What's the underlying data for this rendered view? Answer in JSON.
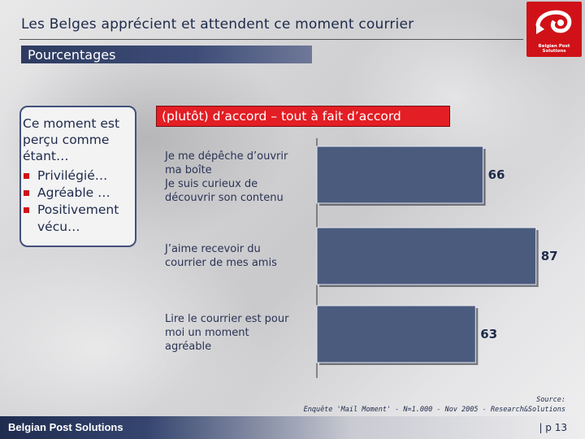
{
  "header": {
    "title": "Les Belges apprécient et attendent ce moment courrier",
    "subtitle": "Pourcentages"
  },
  "logo": {
    "text": "Belgian Post Solutions"
  },
  "left_panel": {
    "heading": "Ce moment est perçu comme étant…",
    "bullets": [
      "Privilégié…",
      "Agréable …",
      "Positivement vécu…"
    ]
  },
  "chart_data": {
    "type": "bar",
    "orientation": "horizontal",
    "title": "(plutôt) d’accord – tout à fait d’accord",
    "categories": [
      "Je me dépêche d’ouvrir ma boîte\nJe suis curieux de découvrir son contenu",
      "J’aime recevoir du courrier de mes amis",
      "Lire le courrier est pour moi un moment agréable"
    ],
    "category_lines": [
      [
        "Je me dépêche d’ouvrir",
        "ma boîte",
        "Je suis curieux de",
        "découvrir son contenu"
      ],
      [
        "J’aime recevoir du",
        "courrier de mes amis"
      ],
      [
        "Lire le courrier est pour",
        "moi un moment",
        "agréable"
      ]
    ],
    "values": [
      66,
      87,
      63
    ],
    "xlim": [
      0,
      100
    ],
    "bar_color": "#4a5b7e",
    "header_color": "#e31e24"
  },
  "source": {
    "label": "Source:",
    "text": "Enquête 'Mail Moment' - N=1.000 - Nov 2005 - Research&Solutions"
  },
  "footer": {
    "brand": "Belgian Post Solutions",
    "page": "| p 13"
  }
}
